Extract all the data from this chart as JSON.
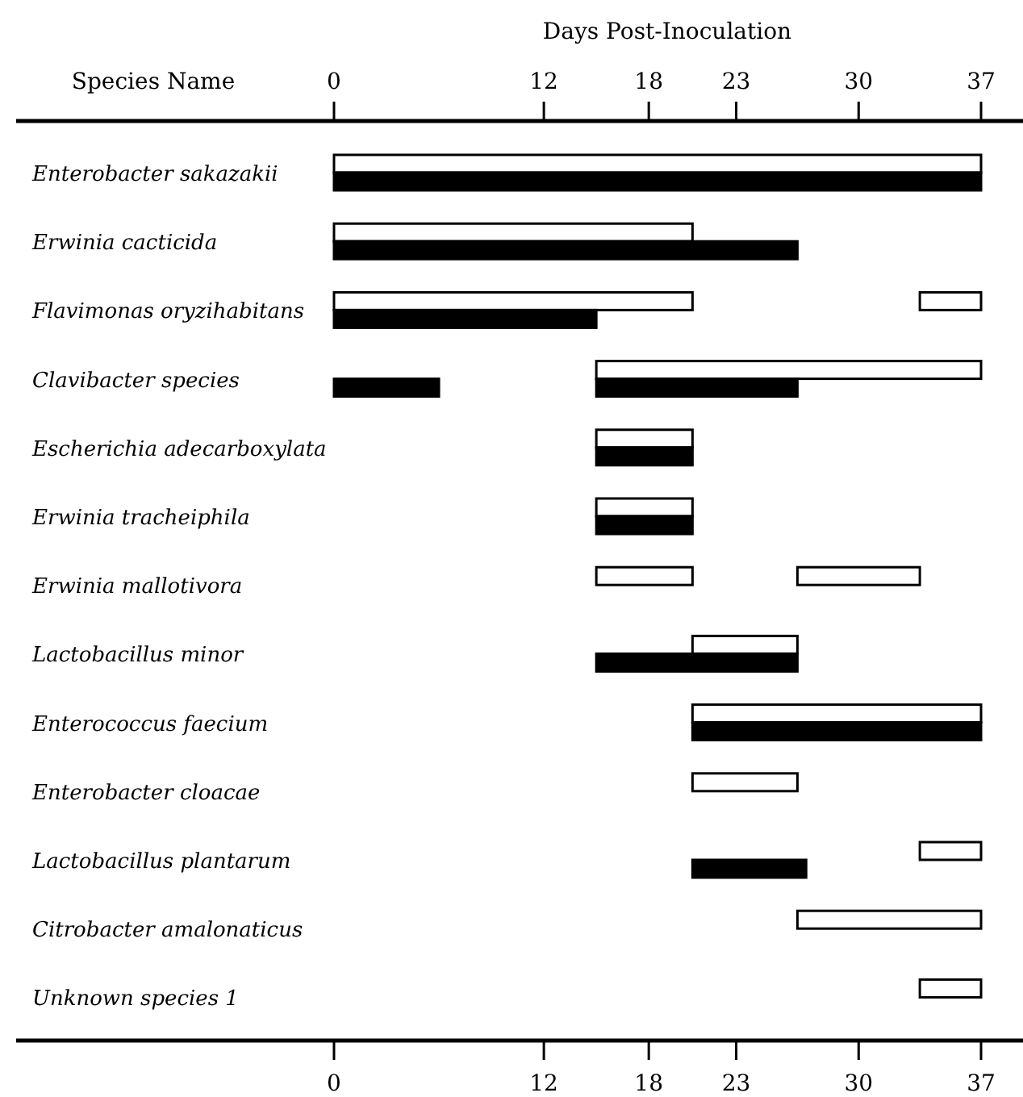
{
  "chart_data": {
    "type": "bar",
    "orientation": "horizontal",
    "ylabel": "Species Name",
    "x2label": "Days Post-Inoculation",
    "categories": [
      "Enterobacter sakazakii",
      "Erwinia cacticida",
      "Flavimonas oryzihabitans",
      "Clavibacter species",
      "Escherichia adecarboxylata",
      "Erwinia tracheiphila",
      "Erwinia mallotivora",
      "Lactobacillus minor",
      "Enterococcus faecium",
      "Enterobacter cloacae",
      "Lactobacillus plantarum",
      "Citrobacter amalonaticus",
      "Unknown species 1"
    ],
    "xlim": [
      0,
      37
    ],
    "xticks": [
      0,
      12,
      18,
      23,
      30,
      37
    ],
    "x2lim": [
      0,
      37
    ],
    "x2ticks": [
      0,
      12,
      18,
      23,
      30,
      37
    ],
    "series": [
      {
        "color": "#ffffff",
        "base": [
          0,
          0,
          0,
          15,
          15,
          15,
          15,
          20.5,
          20.5,
          20.5,
          33.5,
          26.5,
          33.5
        ],
        "values": [
          37,
          20.5,
          20.5,
          22,
          5.5,
          5.5,
          5.5,
          6,
          16.5,
          6,
          3.5,
          10.5,
          3.5
        ]
      },
      {
        "color": "#ffffff",
        "base": [
          null,
          null,
          33.5,
          null,
          null,
          null,
          26.5,
          null,
          null,
          null,
          null,
          null,
          null
        ],
        "values": [
          null,
          null,
          3.5,
          null,
          null,
          null,
          7,
          null,
          null,
          null,
          null,
          null,
          null
        ]
      },
      {
        "color": "#000000",
        "base": [
          0,
          0,
          0,
          0,
          15,
          15,
          null,
          15,
          20.5,
          null,
          20.5,
          null,
          null
        ],
        "values": [
          37,
          26.5,
          15,
          6,
          5.5,
          5.5,
          null,
          11.5,
          16.5,
          null,
          6.5,
          null,
          null
        ]
      },
      {
        "color": "#000000",
        "base": [
          null,
          null,
          null,
          15,
          null,
          null,
          null,
          null,
          null,
          null,
          null,
          null,
          null
        ],
        "values": [
          null,
          null,
          null,
          11.5,
          null,
          null,
          null,
          null,
          null,
          null,
          null,
          null,
          null
        ]
      }
    ]
  }
}
